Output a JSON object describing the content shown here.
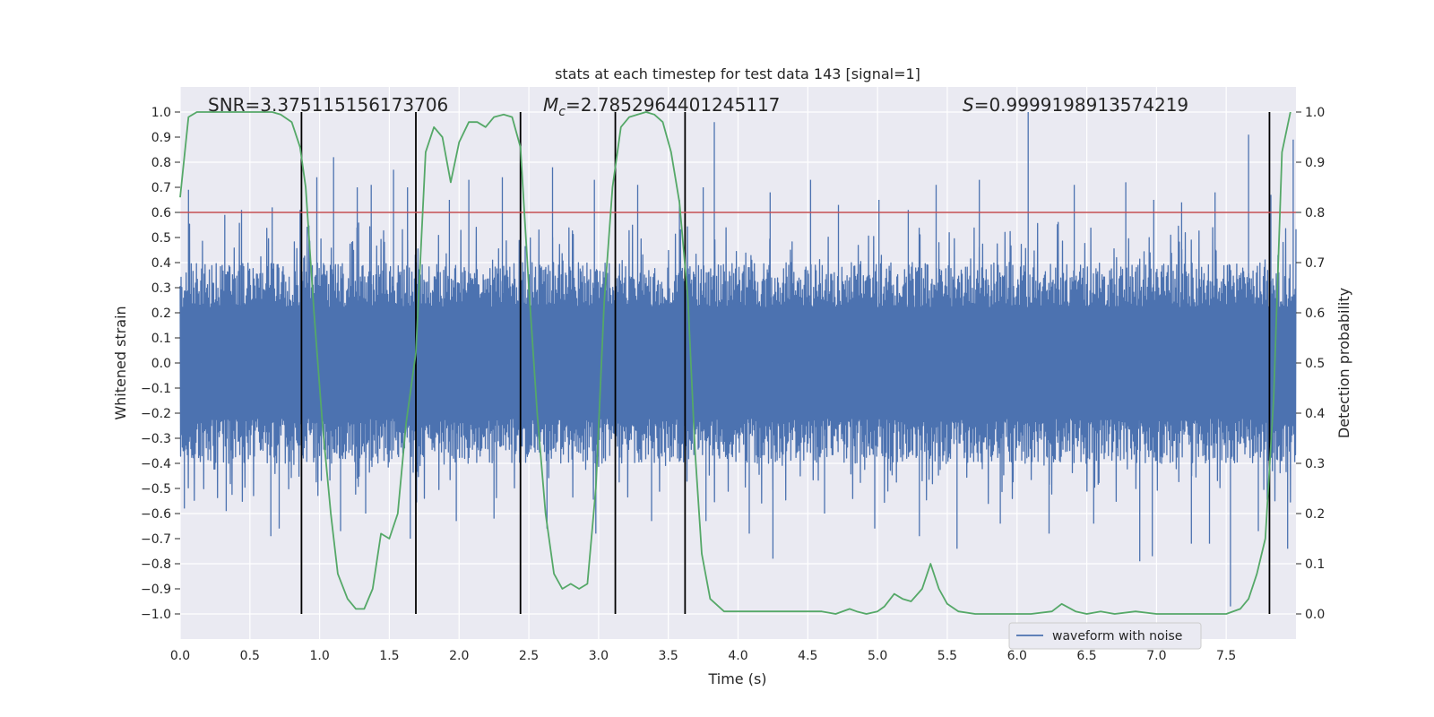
{
  "chart_data": {
    "type": "line",
    "title": "stats at each timestep for test data 143 [signal=1]",
    "xlabel": "Time (s)",
    "ylabel": "Whitened strain",
    "y2label": "Detection probability",
    "xlim": [
      0,
      8
    ],
    "ylim": [
      -1.1,
      1.1
    ],
    "y2lim": [
      -0.05,
      1.05
    ],
    "x_ticks": [
      0.0,
      0.5,
      1.0,
      1.5,
      2.0,
      2.5,
      3.0,
      3.5,
      4.0,
      4.5,
      5.0,
      5.5,
      6.0,
      6.5,
      7.0,
      7.5
    ],
    "x_tick_labels": [
      "0.0",
      "0.5",
      "1.0",
      "1.5",
      "2.0",
      "2.5",
      "3.0",
      "3.5",
      "4.0",
      "4.5",
      "5.0",
      "5.5",
      "6.0",
      "6.5",
      "7.0",
      "7.5"
    ],
    "y_ticks": [
      1.0,
      0.9,
      0.8,
      0.7,
      0.6,
      0.5,
      0.4,
      0.3,
      0.2,
      0.1,
      0.0,
      -0.1,
      -0.2,
      -0.3,
      -0.4,
      -0.5,
      -0.6,
      -0.7,
      -0.8,
      -0.9,
      -1.0
    ],
    "y_tick_labels": [
      "1.0",
      "0.9",
      "0.8",
      "0.7",
      "0.6",
      "0.5",
      "0.4",
      "0.3",
      "0.2",
      "0.1",
      "0.0",
      "−0.1",
      "−0.2",
      "−0.3",
      "−0.4",
      "−0.5",
      "−0.6",
      "−0.7",
      "−0.8",
      "−0.9",
      "−1.0"
    ],
    "y2_ticks": [
      1.0,
      0.9,
      0.8,
      0.7,
      0.6,
      0.5,
      0.4,
      0.3,
      0.2,
      0.1,
      0.0
    ],
    "y2_tick_labels": [
      "1.0",
      "0.9",
      "0.8",
      "0.7",
      "0.6",
      "0.5",
      "0.4",
      "0.3",
      "0.2",
      "0.1",
      "0.0"
    ],
    "stats": {
      "snr": "SNR=3.375115156173706",
      "mc_symbol": "M",
      "mc_subscript": "c",
      "mc_value": "=2.7852964401245117",
      "s_symbol": "S",
      "s_value": "=0.9999198913574219"
    },
    "threshold": {
      "value": 0.8,
      "axis": "y2",
      "color": "#c44e52"
    },
    "event_lines": [
      0.87,
      1.69,
      2.44,
      3.12,
      3.62,
      7.81
    ],
    "waveform": {
      "name": "waveform with noise",
      "color": "#4c72b0",
      "envelope_typical": 0.4,
      "peaks": [
        [
          0.06,
          0.69
        ],
        [
          0.32,
          0.59
        ],
        [
          0.44,
          0.61
        ],
        [
          0.66,
          0.62
        ],
        [
          0.86,
          0.61
        ],
        [
          0.98,
          0.74
        ],
        [
          1.1,
          0.82
        ],
        [
          1.27,
          0.7
        ],
        [
          1.37,
          0.71
        ],
        [
          1.53,
          0.77
        ],
        [
          1.63,
          0.7
        ],
        [
          1.93,
          0.65
        ],
        [
          2.07,
          0.73
        ],
        [
          2.31,
          0.74
        ],
        [
          2.67,
          0.78
        ],
        [
          2.97,
          0.73
        ],
        [
          3.28,
          0.71
        ],
        [
          3.58,
          0.65
        ],
        [
          3.75,
          0.7
        ],
        [
          3.83,
          0.96
        ],
        [
          4.23,
          0.68
        ],
        [
          4.52,
          0.73
        ],
        [
          4.72,
          0.63
        ],
        [
          5.01,
          0.65
        ],
        [
          5.22,
          0.61
        ],
        [
          5.42,
          0.71
        ],
        [
          5.73,
          0.73
        ],
        [
          6.08,
          1.0
        ],
        [
          6.41,
          0.71
        ],
        [
          6.78,
          0.72
        ],
        [
          6.98,
          0.65
        ],
        [
          7.18,
          0.64
        ],
        [
          7.42,
          0.68
        ],
        [
          7.66,
          0.91
        ],
        [
          7.82,
          0.67
        ],
        [
          7.98,
          0.89
        ]
      ],
      "troughs": [
        [
          0.03,
          -0.58
        ],
        [
          0.33,
          -0.59
        ],
        [
          0.65,
          -0.69
        ],
        [
          0.71,
          -0.66
        ],
        [
          1.15,
          -0.67
        ],
        [
          1.33,
          -0.6
        ],
        [
          1.65,
          -0.7
        ],
        [
          1.98,
          -0.63
        ],
        [
          2.25,
          -0.62
        ],
        [
          2.63,
          -0.66
        ],
        [
          2.98,
          -0.68
        ],
        [
          3.38,
          -0.63
        ],
        [
          3.77,
          -0.63
        ],
        [
          4.08,
          -0.68
        ],
        [
          4.25,
          -0.78
        ],
        [
          4.62,
          -0.6
        ],
        [
          4.98,
          -0.66
        ],
        [
          5.3,
          -0.69
        ],
        [
          5.57,
          -0.74
        ],
        [
          5.88,
          -0.64
        ],
        [
          6.23,
          -0.68
        ],
        [
          6.55,
          -0.64
        ],
        [
          6.88,
          -0.79
        ],
        [
          6.97,
          -0.77
        ],
        [
          7.25,
          -0.72
        ],
        [
          7.38,
          -0.72
        ],
        [
          7.53,
          -0.97
        ],
        [
          7.73,
          -0.67
        ],
        [
          7.94,
          -0.74
        ]
      ]
    },
    "probability": {
      "color": "#55a868",
      "x": [
        0.0,
        0.06,
        0.12,
        0.2,
        0.3,
        0.4,
        0.5,
        0.6,
        0.66,
        0.72,
        0.8,
        0.86,
        0.9,
        0.96,
        1.02,
        1.08,
        1.13,
        1.2,
        1.26,
        1.32,
        1.38,
        1.44,
        1.5,
        1.56,
        1.62,
        1.69,
        1.76,
        1.82,
        1.88,
        1.94,
        2.0,
        2.07,
        2.13,
        2.19,
        2.25,
        2.32,
        2.38,
        2.44,
        2.5,
        2.56,
        2.62,
        2.68,
        2.74,
        2.8,
        2.86,
        2.92,
        2.98,
        3.04,
        3.1,
        3.16,
        3.22,
        3.28,
        3.34,
        3.4,
        3.46,
        3.52,
        3.58,
        3.64,
        3.69,
        3.74,
        3.8,
        3.9,
        4.0,
        4.2,
        4.4,
        4.6,
        4.7,
        4.8,
        4.85,
        4.92,
        5.0,
        5.05,
        5.12,
        5.18,
        5.24,
        5.32,
        5.38,
        5.44,
        5.5,
        5.58,
        5.7,
        5.9,
        6.1,
        6.25,
        6.32,
        6.42,
        6.5,
        6.6,
        6.7,
        6.85,
        7.0,
        7.2,
        7.4,
        7.5,
        7.6,
        7.66,
        7.72,
        7.78,
        7.84,
        7.9,
        7.96
      ],
      "y": [
        0.83,
        0.99,
        1.0,
        1.0,
        1.0,
        1.0,
        1.0,
        1.0,
        1.0,
        0.995,
        0.98,
        0.93,
        0.85,
        0.6,
        0.38,
        0.2,
        0.08,
        0.03,
        0.01,
        0.01,
        0.05,
        0.16,
        0.15,
        0.2,
        0.38,
        0.52,
        0.92,
        0.97,
        0.95,
        0.86,
        0.94,
        0.98,
        0.98,
        0.97,
        0.99,
        0.995,
        0.99,
        0.93,
        0.65,
        0.4,
        0.2,
        0.08,
        0.05,
        0.06,
        0.05,
        0.06,
        0.25,
        0.62,
        0.85,
        0.97,
        0.99,
        0.995,
        1.0,
        0.995,
        0.98,
        0.92,
        0.82,
        0.63,
        0.33,
        0.12,
        0.03,
        0.005,
        0.005,
        0.005,
        0.005,
        0.005,
        0.0,
        0.01,
        0.005,
        0.0,
        0.005,
        0.015,
        0.04,
        0.03,
        0.025,
        0.05,
        0.1,
        0.05,
        0.02,
        0.005,
        0.0,
        0.0,
        0.0,
        0.005,
        0.02,
        0.005,
        0.0,
        0.005,
        0.0,
        0.005,
        0.0,
        0.0,
        0.0,
        0.0,
        0.01,
        0.03,
        0.08,
        0.15,
        0.43,
        0.92,
        1.0
      ]
    },
    "legend": {
      "label": "waveform with noise",
      "placement": "lower-right"
    }
  }
}
